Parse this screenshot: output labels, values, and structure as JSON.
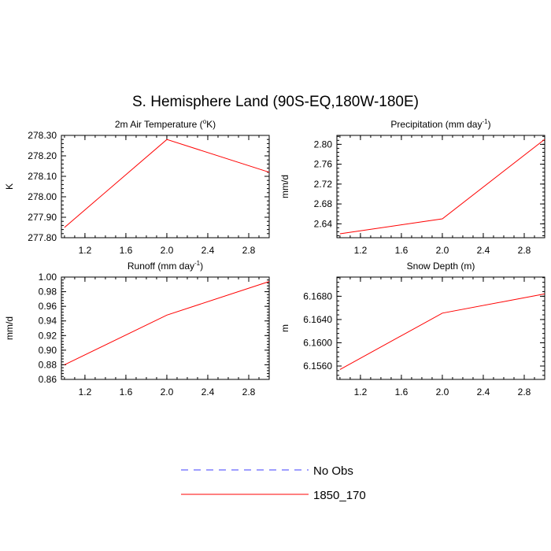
{
  "main_title": "S. Hemisphere Land (90S-EQ,180W-180E)",
  "legend": {
    "entries": [
      {
        "label": "No Obs",
        "color": "#3c3cff",
        "dashed": true
      },
      {
        "label": "1850_170",
        "color": "#ff0000",
        "dashed": false
      }
    ]
  },
  "chart_data": [
    {
      "type": "line",
      "title": "2m Air Temperature (",
      "title_sup": "o",
      "title_tail": "K)",
      "ylabel": "K",
      "xlim": [
        0.97,
        3.0
      ],
      "ylim": [
        277.8,
        278.3
      ],
      "xticks": [
        1.2,
        1.6,
        2.0,
        2.4,
        2.8
      ],
      "xtick_labels": [
        "1.2",
        "1.6",
        "2.0",
        "2.4",
        "2.8"
      ],
      "yticks": [
        277.8,
        277.9,
        278.0,
        278.1,
        278.2,
        278.3
      ],
      "ytick_labels": [
        "277.80",
        "277.90",
        "278.00",
        "278.10",
        "278.20",
        "278.30"
      ],
      "series": [
        {
          "color": "#ff0000",
          "x": [
            1,
            2,
            3
          ],
          "y": [
            277.85,
            278.28,
            278.12
          ]
        }
      ]
    },
    {
      "type": "line",
      "title": "Precipitation (mm day",
      "title_sup": "-1",
      "title_tail": ")",
      "ylabel": "mm/d",
      "xlim": [
        0.97,
        3.0
      ],
      "ylim": [
        2.612,
        2.818
      ],
      "xticks": [
        1.2,
        1.6,
        2.0,
        2.4,
        2.8
      ],
      "xtick_labels": [
        "1.2",
        "1.6",
        "2.0",
        "2.4",
        "2.8"
      ],
      "yticks": [
        2.64,
        2.68,
        2.72,
        2.76,
        2.8
      ],
      "ytick_labels": [
        "2.64",
        "2.68",
        "2.72",
        "2.76",
        "2.80"
      ],
      "series": [
        {
          "color": "#ff0000",
          "x": [
            1,
            2,
            3
          ],
          "y": [
            2.62,
            2.65,
            2.81
          ]
        }
      ]
    },
    {
      "type": "line",
      "title": "Runoff (mm day",
      "title_sup": "-1",
      "title_tail": ")",
      "ylabel": "mm/d",
      "xlim": [
        0.97,
        3.0
      ],
      "ylim": [
        0.86,
        1.0
      ],
      "xticks": [
        1.2,
        1.6,
        2.0,
        2.4,
        2.8
      ],
      "xtick_labels": [
        "1.2",
        "1.6",
        "2.0",
        "2.4",
        "2.8"
      ],
      "yticks": [
        0.86,
        0.88,
        0.9,
        0.92,
        0.94,
        0.96,
        0.98,
        1.0
      ],
      "ytick_labels": [
        "0.86",
        "0.88",
        "0.90",
        "0.92",
        "0.94",
        "0.96",
        "0.98",
        "1.00"
      ],
      "series": [
        {
          "color": "#ff0000",
          "x": [
            1,
            2,
            3
          ],
          "y": [
            0.88,
            0.948,
            0.994
          ]
        }
      ]
    },
    {
      "type": "line",
      "title": "Snow Depth (m)",
      "title_sup": "",
      "title_tail": "",
      "ylabel": "m",
      "xlim": [
        0.97,
        3.0
      ],
      "ylim": [
        6.1537,
        6.1713
      ],
      "xticks": [
        1.2,
        1.6,
        2.0,
        2.4,
        2.8
      ],
      "xtick_labels": [
        "1.2",
        "1.6",
        "2.0",
        "2.4",
        "2.8"
      ],
      "yticks": [
        6.156,
        6.16,
        6.164,
        6.168
      ],
      "ytick_labels": [
        "6.1560",
        "6.1600",
        "6.1640",
        "6.1680"
      ],
      "series": [
        {
          "color": "#ff0000",
          "x": [
            1,
            2,
            3
          ],
          "y": [
            6.1554,
            6.1651,
            6.1684
          ]
        }
      ]
    }
  ]
}
